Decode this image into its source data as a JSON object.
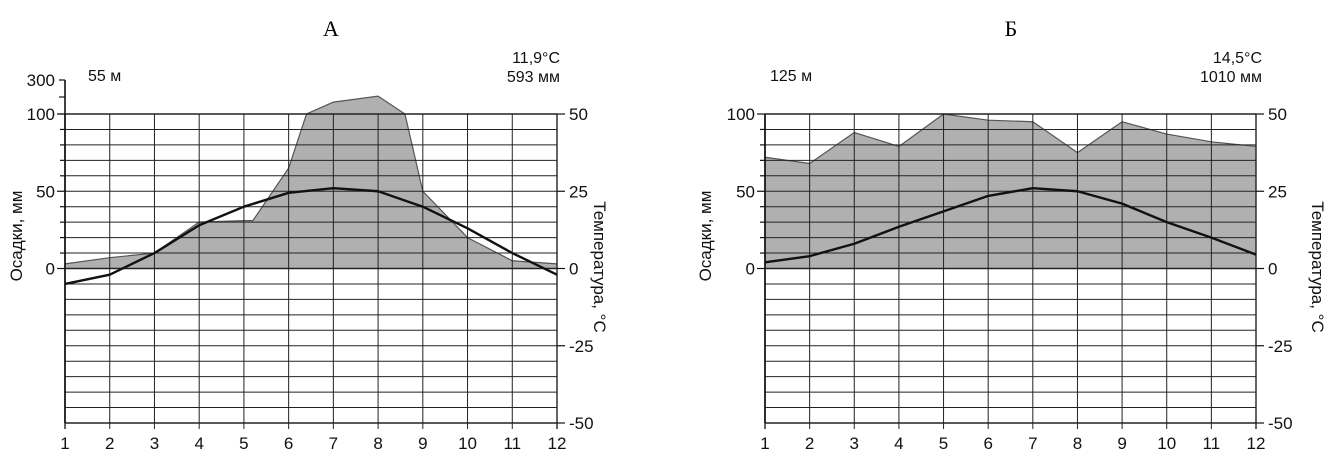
{
  "chart_data": [
    {
      "type": "area",
      "panel_label": "А",
      "elevation": "55 м",
      "mean_temperature": "11,9°C",
      "annual_precipitation": "593 мм",
      "ylabel_left": "Осадки, мм",
      "ylabel_right": "Температура, °С",
      "x_ticks": [
        "1",
        "2",
        "3",
        "4",
        "5",
        "6",
        "7",
        "8",
        "9",
        "10",
        "11",
        "12"
      ],
      "y_left_ticks": [
        "300",
        "100",
        "50",
        "0"
      ],
      "y_right_ticks": [
        "50",
        "25",
        "0",
        "-25",
        "-50"
      ],
      "precipitation_axis": {
        "linear_range": [
          0,
          100
        ],
        "compressed_range": [
          100,
          300
        ]
      },
      "temperature_range": [
        -50,
        50
      ],
      "precipitation": {
        "x": [
          1,
          2,
          3,
          4,
          5,
          5.2,
          6,
          6.4,
          7,
          8,
          8.6,
          9,
          10,
          11,
          12
        ],
        "y": [
          3,
          7,
          10,
          30,
          31,
          31,
          65,
          100,
          170,
          205,
          100,
          50,
          20,
          5,
          3
        ]
      },
      "temperature": {
        "x": [
          1,
          2,
          3,
          4,
          5,
          6,
          7,
          8,
          9,
          10,
          11,
          12
        ],
        "y": [
          -5,
          -2,
          5,
          14,
          20,
          24.5,
          26,
          25,
          20,
          13,
          5,
          -2
        ]
      },
      "colors": {
        "precipitation_fill": "#b0b0b0",
        "precipitation_line": "#555555",
        "temperature_line": "#111111",
        "grid": "#222222"
      }
    },
    {
      "type": "area",
      "panel_label": "Б",
      "elevation": "125 м",
      "mean_temperature": "14,5°C",
      "annual_precipitation": "1010 мм",
      "ylabel_left": "Осадки, мм",
      "ylabel_right": "Температура, °С",
      "x_ticks": [
        "1",
        "2",
        "3",
        "4",
        "5",
        "6",
        "7",
        "8",
        "9",
        "10",
        "11",
        "12"
      ],
      "y_left_ticks": [
        "100",
        "50",
        "0"
      ],
      "y_right_ticks": [
        "50",
        "25",
        "0",
        "-25",
        "-50"
      ],
      "precipitation_axis": {
        "linear_range": [
          0,
          100
        ]
      },
      "temperature_range": [
        -50,
        50
      ],
      "precipitation": {
        "x": [
          1,
          2,
          3,
          4,
          5,
          6,
          7,
          8,
          9,
          10,
          11,
          12
        ],
        "y": [
          72,
          68,
          88,
          79,
          101,
          96,
          95,
          75,
          95,
          87,
          82,
          79
        ]
      },
      "temperature": {
        "x": [
          1,
          2,
          3,
          4,
          5,
          6,
          7,
          8,
          9,
          10,
          11,
          12
        ],
        "y": [
          2,
          4,
          8,
          13.5,
          18.5,
          23.5,
          26,
          25,
          21,
          15,
          10,
          4.5
        ]
      },
      "colors": {
        "precipitation_fill": "#b0b0b0",
        "precipitation_line": "#555555",
        "temperature_line": "#111111",
        "grid": "#222222"
      }
    }
  ]
}
